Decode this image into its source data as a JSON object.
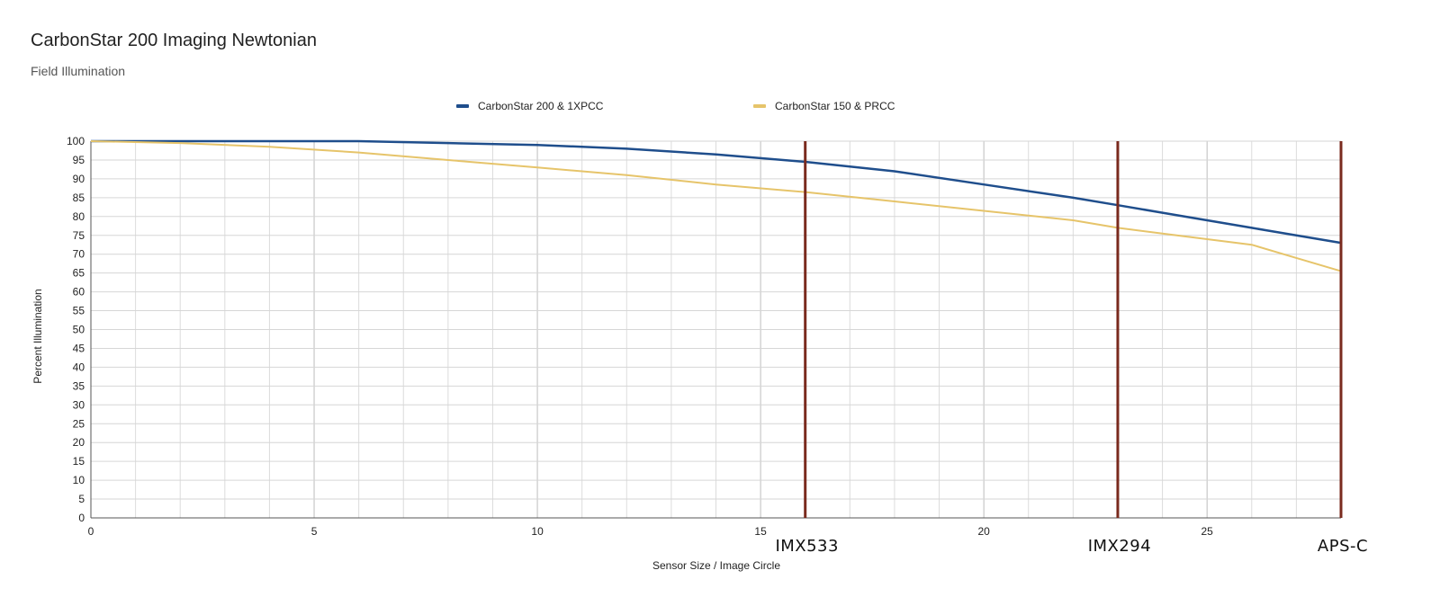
{
  "chart_data": {
    "type": "line",
    "title": "CarbonStar 200 Imaging Newtonian",
    "subtitle": "Field Illumination",
    "xlabel": "Sensor Size / Image Circle",
    "ylabel": "Percent Illumination",
    "xlim": [
      0,
      28
    ],
    "ylim": [
      0,
      100
    ],
    "x_ticks": [
      0,
      5,
      10,
      15,
      20,
      25
    ],
    "x_minor_step": 1,
    "y_ticks": [
      0,
      5,
      10,
      15,
      20,
      25,
      30,
      35,
      40,
      45,
      50,
      55,
      60,
      65,
      70,
      75,
      80,
      85,
      90,
      95,
      100
    ],
    "grid": true,
    "legend_position": "top-center",
    "series": [
      {
        "name": "CarbonStar 200 & 1XPCC",
        "color": "#1f4e8c",
        "x": [
          0,
          2,
          4,
          6,
          8,
          10,
          12,
          14,
          16,
          18,
          20,
          22,
          23,
          24,
          26,
          28
        ],
        "y": [
          100,
          100,
          100,
          100,
          99.5,
          99,
          98,
          96.5,
          94.5,
          92,
          88.5,
          85,
          83,
          81,
          77,
          73
        ]
      },
      {
        "name": "CarbonStar 150 & PRCC",
        "color": "#e6c46a",
        "x": [
          0,
          2,
          4,
          6,
          8,
          10,
          12,
          14,
          16,
          18,
          20,
          22,
          23,
          24,
          26,
          27,
          28
        ],
        "y": [
          100,
          99.5,
          98.5,
          97,
          95,
          93,
          91,
          88.5,
          86.5,
          84,
          81.5,
          79,
          77,
          75.5,
          72.5,
          69,
          65.5
        ]
      }
    ],
    "annotations": [
      {
        "label": "IMX533",
        "x": 16,
        "color": "#7a2a1e"
      },
      {
        "label": "IMX294",
        "x": 23,
        "color": "#7a2a1e"
      },
      {
        "label": "APS-C",
        "x": 28,
        "color": "#7a2a1e"
      }
    ]
  }
}
